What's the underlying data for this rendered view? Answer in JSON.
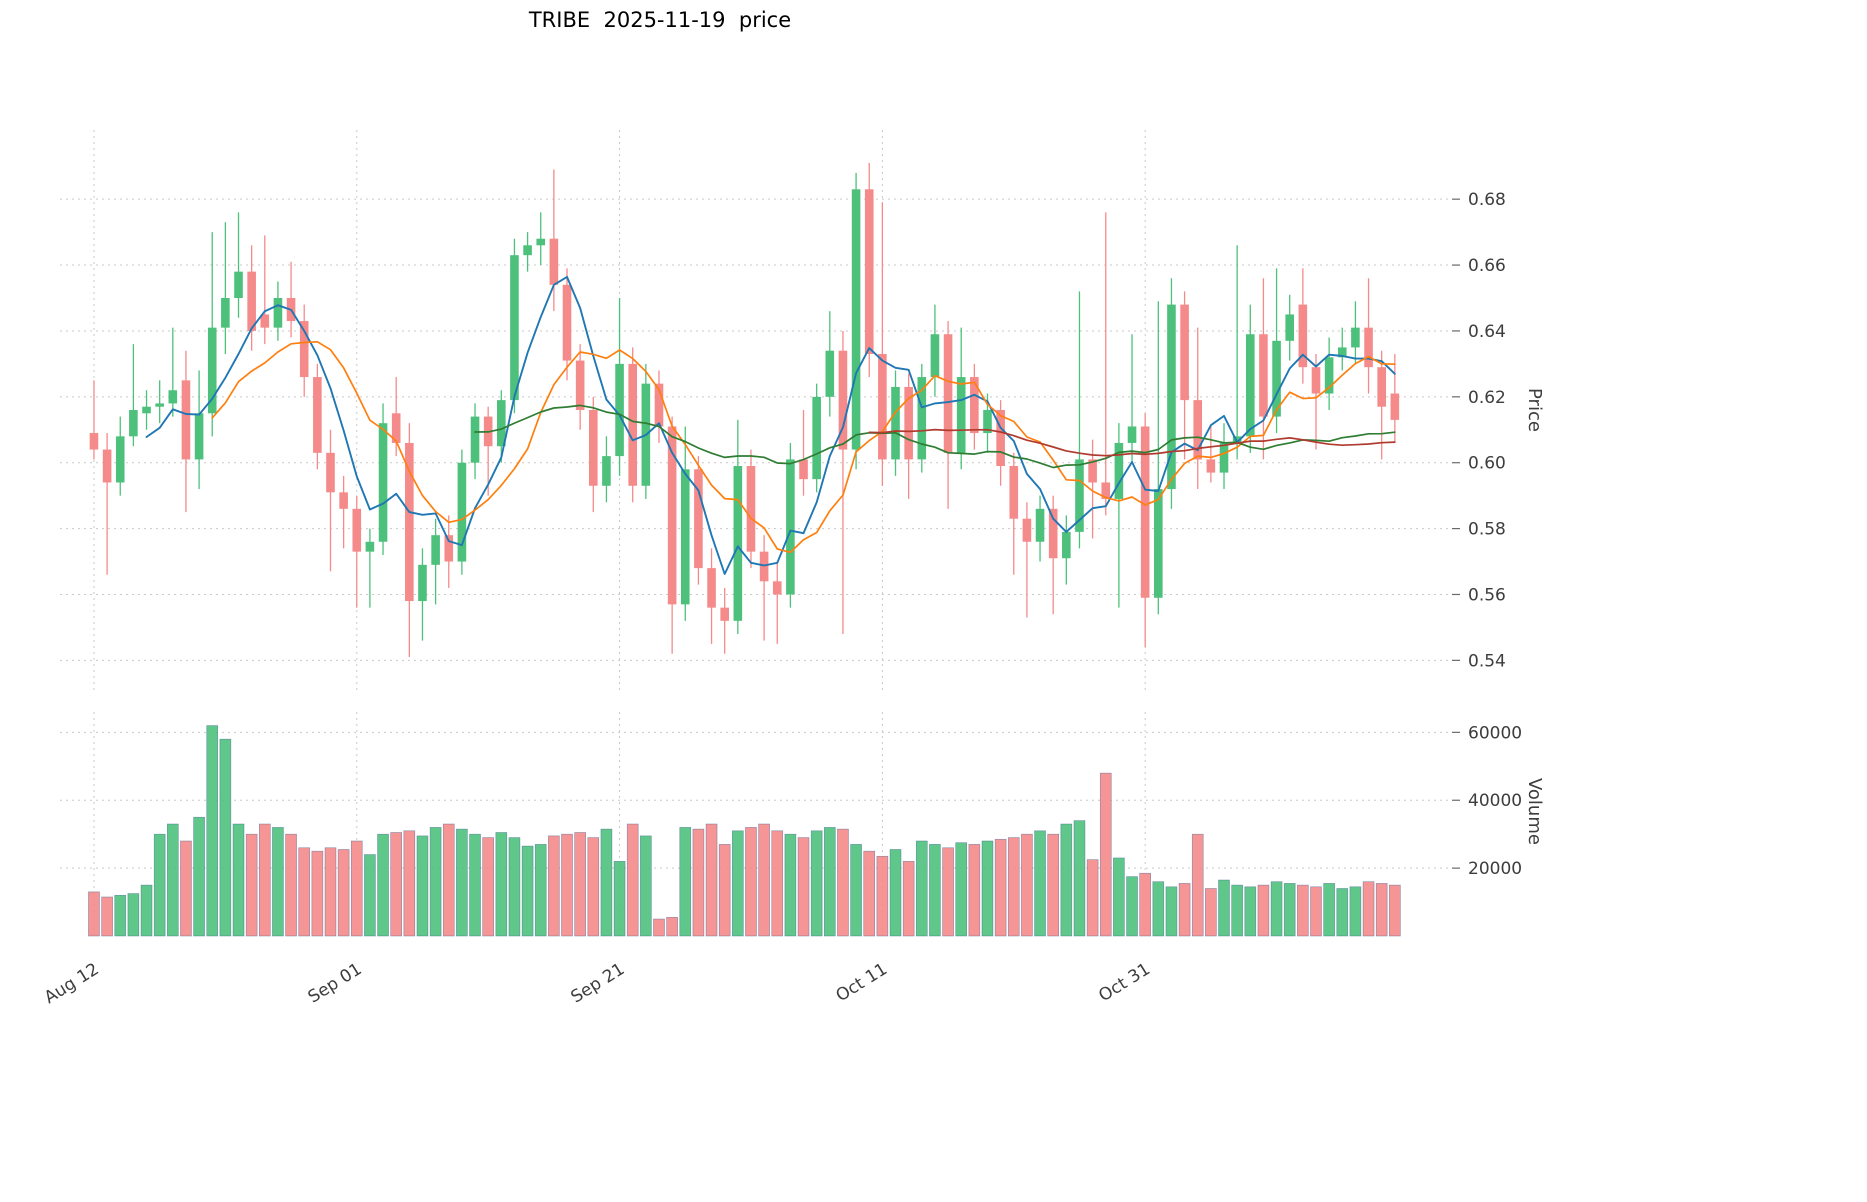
{
  "chart_data": {
    "type": "candlestick+volume",
    "title": "TRIBE  2025-11-19  price",
    "ylabel": "Price",
    "ylabel2": "Volume",
    "ylim": [
      0.531,
      0.701
    ],
    "volume_max": 66000,
    "grid": true,
    "legend_position": "none",
    "price_ticks": [
      0.54,
      0.56,
      0.58,
      0.6,
      0.62,
      0.64,
      0.66,
      0.68
    ],
    "volume_ticks": [
      20000,
      40000,
      60000
    ],
    "xticks": [
      {
        "index": 0,
        "label": "Aug 12"
      },
      {
        "index": 20,
        "label": "Sep 01"
      },
      {
        "index": 40,
        "label": "Sep 21"
      },
      {
        "index": 60,
        "label": "Oct 11"
      },
      {
        "index": 80,
        "label": "Oct 31"
      }
    ],
    "moving_averages": [
      {
        "name": "MA5",
        "period": 5,
        "color": "#1f77b4"
      },
      {
        "name": "MA10",
        "period": 10,
        "color": "#ff7f0e"
      },
      {
        "name": "MA30",
        "period": 30,
        "color": "#2e7d32"
      },
      {
        "name": "MA60",
        "period": 60,
        "color": "#b03a2e"
      }
    ],
    "colors": {
      "up": "#4dc17c",
      "down": "#f58a8a",
      "grid": "#c9c9c9",
      "text": "#3d3d3d",
      "volume_edge": "#3f5f8f"
    },
    "dates": [
      "2025-08-12",
      "2025-08-13",
      "2025-08-14",
      "2025-08-15",
      "2025-08-16",
      "2025-08-17",
      "2025-08-18",
      "2025-08-19",
      "2025-08-20",
      "2025-08-21",
      "2025-08-22",
      "2025-08-23",
      "2025-08-24",
      "2025-08-25",
      "2025-08-26",
      "2025-08-27",
      "2025-08-28",
      "2025-08-29",
      "2025-08-30",
      "2025-08-31",
      "2025-09-01",
      "2025-09-02",
      "2025-09-03",
      "2025-09-04",
      "2025-09-05",
      "2025-09-06",
      "2025-09-07",
      "2025-09-08",
      "2025-09-09",
      "2025-09-10",
      "2025-09-11",
      "2025-09-12",
      "2025-09-13",
      "2025-09-14",
      "2025-09-15",
      "2025-09-16",
      "2025-09-17",
      "2025-09-18",
      "2025-09-19",
      "2025-09-20",
      "2025-09-21",
      "2025-09-22",
      "2025-09-23",
      "2025-09-24",
      "2025-09-25",
      "2025-09-26",
      "2025-09-27",
      "2025-09-28",
      "2025-09-29",
      "2025-09-30",
      "2025-10-01",
      "2025-10-02",
      "2025-10-03",
      "2025-10-04",
      "2025-10-05",
      "2025-10-06",
      "2025-10-07",
      "2025-10-08",
      "2025-10-09",
      "2025-10-10",
      "2025-10-11",
      "2025-10-12",
      "2025-10-13",
      "2025-10-14",
      "2025-10-15",
      "2025-10-16",
      "2025-10-17",
      "2025-10-18",
      "2025-10-19",
      "2025-10-20",
      "2025-10-21",
      "2025-10-22",
      "2025-10-23",
      "2025-10-24",
      "2025-10-25",
      "2025-10-26",
      "2025-10-27",
      "2025-10-28",
      "2025-10-29",
      "2025-10-30",
      "2025-10-31",
      "2025-11-01",
      "2025-11-02",
      "2025-11-03",
      "2025-11-04",
      "2025-11-05",
      "2025-11-06",
      "2025-11-07",
      "2025-11-08",
      "2025-11-09",
      "2025-11-10",
      "2025-11-11",
      "2025-11-12",
      "2025-11-13",
      "2025-11-14",
      "2025-11-15",
      "2025-11-16",
      "2025-11-17",
      "2025-11-18",
      "2025-11-19"
    ],
    "ohlc": [
      [
        0.609,
        0.625,
        0.601,
        0.604
      ],
      [
        0.604,
        0.609,
        0.566,
        0.594
      ],
      [
        0.594,
        0.614,
        0.59,
        0.608
      ],
      [
        0.608,
        0.636,
        0.605,
        0.616
      ],
      [
        0.615,
        0.622,
        0.61,
        0.617
      ],
      [
        0.617,
        0.625,
        0.612,
        0.618
      ],
      [
        0.618,
        0.641,
        0.614,
        0.622
      ],
      [
        0.625,
        0.634,
        0.585,
        0.601
      ],
      [
        0.601,
        0.628,
        0.592,
        0.615
      ],
      [
        0.615,
        0.67,
        0.608,
        0.641
      ],
      [
        0.641,
        0.673,
        0.633,
        0.65
      ],
      [
        0.65,
        0.676,
        0.644,
        0.658
      ],
      [
        0.658,
        0.666,
        0.634,
        0.64
      ],
      [
        0.645,
        0.669,
        0.636,
        0.641
      ],
      [
        0.641,
        0.655,
        0.637,
        0.65
      ],
      [
        0.65,
        0.661,
        0.638,
        0.643
      ],
      [
        0.643,
        0.648,
        0.62,
        0.626
      ],
      [
        0.626,
        0.63,
        0.598,
        0.603
      ],
      [
        0.603,
        0.61,
        0.567,
        0.591
      ],
      [
        0.591,
        0.596,
        0.574,
        0.586
      ],
      [
        0.586,
        0.59,
        0.556,
        0.573
      ],
      [
        0.573,
        0.58,
        0.556,
        0.576
      ],
      [
        0.576,
        0.618,
        0.572,
        0.612
      ],
      [
        0.615,
        0.626,
        0.602,
        0.606
      ],
      [
        0.606,
        0.612,
        0.541,
        0.558
      ],
      [
        0.558,
        0.574,
        0.546,
        0.569
      ],
      [
        0.569,
        0.583,
        0.557,
        0.578
      ],
      [
        0.578,
        0.584,
        0.562,
        0.57
      ],
      [
        0.57,
        0.604,
        0.566,
        0.6
      ],
      [
        0.6,
        0.618,
        0.595,
        0.614
      ],
      [
        0.614,
        0.617,
        0.59,
        0.605
      ],
      [
        0.605,
        0.622,
        0.6,
        0.619
      ],
      [
        0.619,
        0.668,
        0.615,
        0.663
      ],
      [
        0.663,
        0.67,
        0.658,
        0.666
      ],
      [
        0.666,
        0.676,
        0.66,
        0.668
      ],
      [
        0.668,
        0.689,
        0.646,
        0.654
      ],
      [
        0.654,
        0.659,
        0.625,
        0.631
      ],
      [
        0.631,
        0.636,
        0.61,
        0.616
      ],
      [
        0.616,
        0.62,
        0.585,
        0.593
      ],
      [
        0.593,
        0.608,
        0.588,
        0.602
      ],
      [
        0.602,
        0.65,
        0.596,
        0.63
      ],
      [
        0.63,
        0.635,
        0.588,
        0.593
      ],
      [
        0.593,
        0.63,
        0.589,
        0.624
      ],
      [
        0.624,
        0.628,
        0.606,
        0.611
      ],
      [
        0.611,
        0.614,
        0.542,
        0.557
      ],
      [
        0.557,
        0.611,
        0.552,
        0.598
      ],
      [
        0.598,
        0.602,
        0.563,
        0.568
      ],
      [
        0.568,
        0.574,
        0.545,
        0.556
      ],
      [
        0.556,
        0.562,
        0.542,
        0.552
      ],
      [
        0.552,
        0.613,
        0.548,
        0.599
      ],
      [
        0.599,
        0.604,
        0.568,
        0.573
      ],
      [
        0.573,
        0.578,
        0.546,
        0.564
      ],
      [
        0.564,
        0.57,
        0.545,
        0.56
      ],
      [
        0.56,
        0.606,
        0.556,
        0.601
      ],
      [
        0.601,
        0.616,
        0.59,
        0.595
      ],
      [
        0.595,
        0.624,
        0.591,
        0.62
      ],
      [
        0.62,
        0.646,
        0.614,
        0.634
      ],
      [
        0.634,
        0.64,
        0.548,
        0.604
      ],
      [
        0.604,
        0.688,
        0.598,
        0.683
      ],
      [
        0.683,
        0.691,
        0.626,
        0.633
      ],
      [
        0.633,
        0.679,
        0.593,
        0.601
      ],
      [
        0.601,
        0.628,
        0.596,
        0.623
      ],
      [
        0.623,
        0.627,
        0.589,
        0.601
      ],
      [
        0.601,
        0.63,
        0.597,
        0.626
      ],
      [
        0.626,
        0.648,
        0.62,
        0.639
      ],
      [
        0.639,
        0.643,
        0.586,
        0.603
      ],
      [
        0.603,
        0.641,
        0.598,
        0.626
      ],
      [
        0.626,
        0.63,
        0.604,
        0.609
      ],
      [
        0.609,
        0.621,
        0.603,
        0.616
      ],
      [
        0.616,
        0.619,
        0.593,
        0.599
      ],
      [
        0.599,
        0.603,
        0.566,
        0.583
      ],
      [
        0.583,
        0.588,
        0.553,
        0.576
      ],
      [
        0.576,
        0.59,
        0.57,
        0.586
      ],
      [
        0.586,
        0.59,
        0.554,
        0.571
      ],
      [
        0.571,
        0.584,
        0.563,
        0.579
      ],
      [
        0.579,
        0.652,
        0.574,
        0.601
      ],
      [
        0.601,
        0.607,
        0.577,
        0.594
      ],
      [
        0.594,
        0.676,
        0.584,
        0.589
      ],
      [
        0.589,
        0.612,
        0.556,
        0.606
      ],
      [
        0.606,
        0.639,
        0.6,
        0.611
      ],
      [
        0.611,
        0.615,
        0.544,
        0.559
      ],
      [
        0.559,
        0.649,
        0.554,
        0.592
      ],
      [
        0.592,
        0.656,
        0.586,
        0.648
      ],
      [
        0.648,
        0.652,
        0.601,
        0.619
      ],
      [
        0.619,
        0.641,
        0.592,
        0.601
      ],
      [
        0.601,
        0.611,
        0.594,
        0.597
      ],
      [
        0.597,
        0.612,
        0.592,
        0.606
      ],
      [
        0.606,
        0.666,
        0.601,
        0.608
      ],
      [
        0.608,
        0.648,
        0.603,
        0.639
      ],
      [
        0.639,
        0.656,
        0.601,
        0.614
      ],
      [
        0.614,
        0.659,
        0.609,
        0.637
      ],
      [
        0.637,
        0.651,
        0.631,
        0.645
      ],
      [
        0.648,
        0.659,
        0.624,
        0.629
      ],
      [
        0.629,
        0.633,
        0.604,
        0.621
      ],
      [
        0.621,
        0.638,
        0.616,
        0.632
      ],
      [
        0.632,
        0.641,
        0.628,
        0.635
      ],
      [
        0.635,
        0.649,
        0.63,
        0.641
      ],
      [
        0.641,
        0.656,
        0.621,
        0.629
      ],
      [
        0.629,
        0.634,
        0.601,
        0.617
      ],
      [
        0.621,
        0.633,
        0.606,
        0.613
      ]
    ],
    "volume": [
      13000,
      11500,
      12000,
      12500,
      15000,
      30000,
      33000,
      28000,
      35000,
      62000,
      58000,
      33000,
      30000,
      33000,
      32000,
      30000,
      26000,
      25000,
      26000,
      25500,
      28000,
      24000,
      30000,
      30500,
      31000,
      29500,
      32000,
      33000,
      31500,
      30000,
      29000,
      30500,
      29000,
      26500,
      27000,
      29500,
      30000,
      30500,
      29000,
      31500,
      22000,
      33000,
      29500,
      5000,
      5500,
      32000,
      31500,
      33000,
      27000,
      31000,
      32000,
      33000,
      31000,
      30000,
      29000,
      31000,
      32000,
      31500,
      27000,
      25000,
      23500,
      25500,
      22000,
      28000,
      27000,
      26000,
      27500,
      27000,
      28000,
      28500,
      29000,
      30000,
      31000,
      30000,
      33000,
      34000,
      22500,
      48000,
      23000,
      17500,
      18500,
      16000,
      14500,
      15500,
      30000,
      14000,
      16500,
      15000,
      14500,
      15000,
      16000,
      15500,
      15000,
      14500,
      15500,
      14000,
      14500,
      16000,
      15500,
      15000
    ]
  }
}
